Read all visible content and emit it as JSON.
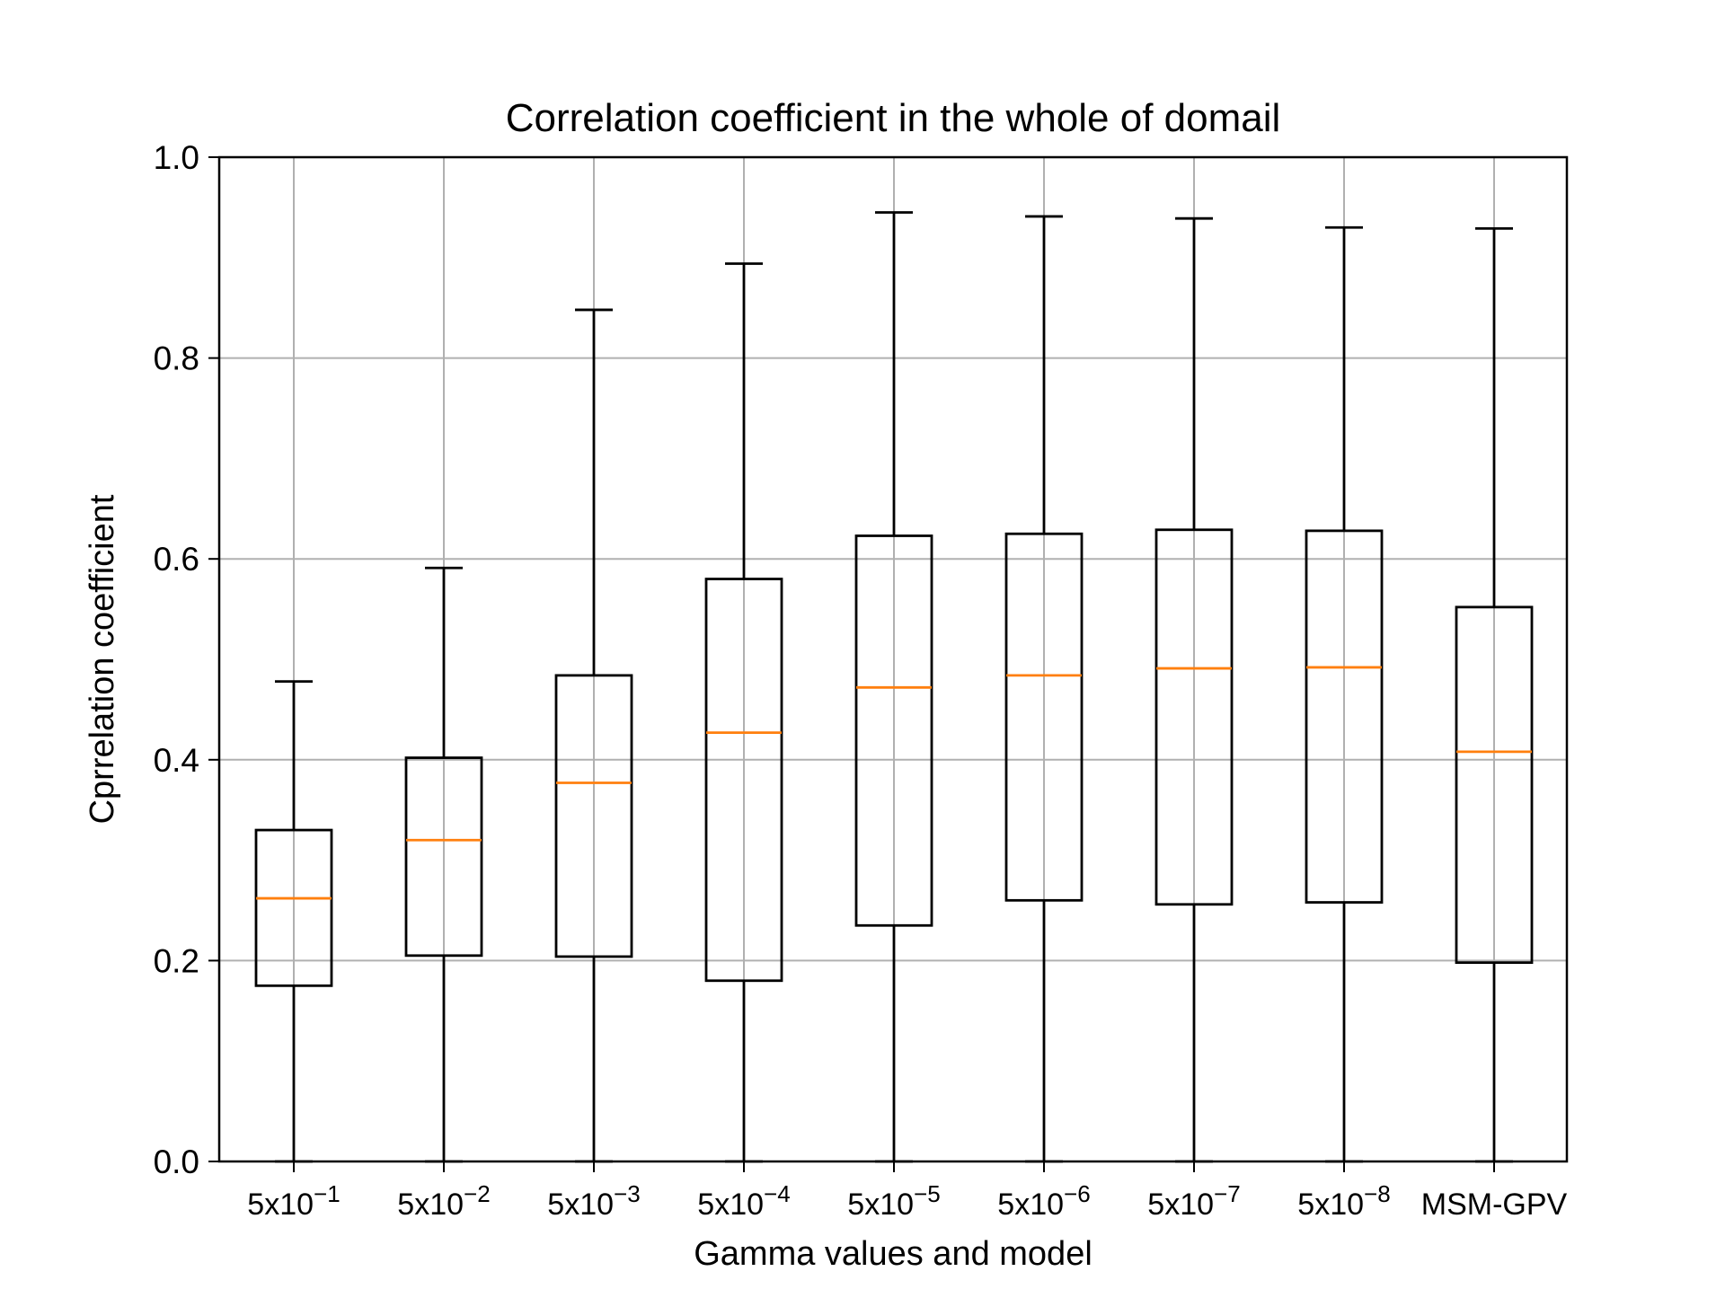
{
  "chart_data": {
    "type": "box",
    "title": "Correlation coefficient in the whole of domail",
    "xlabel": "Gamma values and model",
    "ylabel": "Cprrelation coefficient",
    "ylim": [
      0.0,
      1.0
    ],
    "yticks": [
      "0.0",
      "0.2",
      "0.4",
      "0.6",
      "0.8",
      "1.0"
    ],
    "grid": true,
    "colors": {
      "box": "#000000",
      "median": "#ff7f0e",
      "grid": "#b0b0b0"
    },
    "categories": [
      {
        "base": "5x10",
        "exp": "−1"
      },
      {
        "base": "5x10",
        "exp": "−2"
      },
      {
        "base": "5x10",
        "exp": "−3"
      },
      {
        "base": "5x10",
        "exp": "−4"
      },
      {
        "base": "5x10",
        "exp": "−5"
      },
      {
        "base": "5x10",
        "exp": "−6"
      },
      {
        "base": "5x10",
        "exp": "−7"
      },
      {
        "base": "5x10",
        "exp": "−8"
      },
      {
        "base": "MSM-GPV",
        "exp": ""
      }
    ],
    "boxes": [
      {
        "whisker_low": 0.0,
        "q1": 0.175,
        "median": 0.262,
        "q3": 0.33,
        "whisker_high": 0.478
      },
      {
        "whisker_low": 0.0,
        "q1": 0.205,
        "median": 0.32,
        "q3": 0.402,
        "whisker_high": 0.591
      },
      {
        "whisker_low": 0.0,
        "q1": 0.204,
        "median": 0.377,
        "q3": 0.484,
        "whisker_high": 0.848
      },
      {
        "whisker_low": 0.0,
        "q1": 0.18,
        "median": 0.427,
        "q3": 0.58,
        "whisker_high": 0.894
      },
      {
        "whisker_low": 0.0,
        "q1": 0.235,
        "median": 0.472,
        "q3": 0.623,
        "whisker_high": 0.945
      },
      {
        "whisker_low": 0.0,
        "q1": 0.26,
        "median": 0.484,
        "q3": 0.625,
        "whisker_high": 0.941
      },
      {
        "whisker_low": 0.0,
        "q1": 0.256,
        "median": 0.491,
        "q3": 0.629,
        "whisker_high": 0.939
      },
      {
        "whisker_low": 0.0,
        "q1": 0.258,
        "median": 0.492,
        "q3": 0.628,
        "whisker_high": 0.93
      },
      {
        "whisker_low": 0.0,
        "q1": 0.198,
        "median": 0.408,
        "q3": 0.552,
        "whisker_high": 0.929
      }
    ]
  }
}
